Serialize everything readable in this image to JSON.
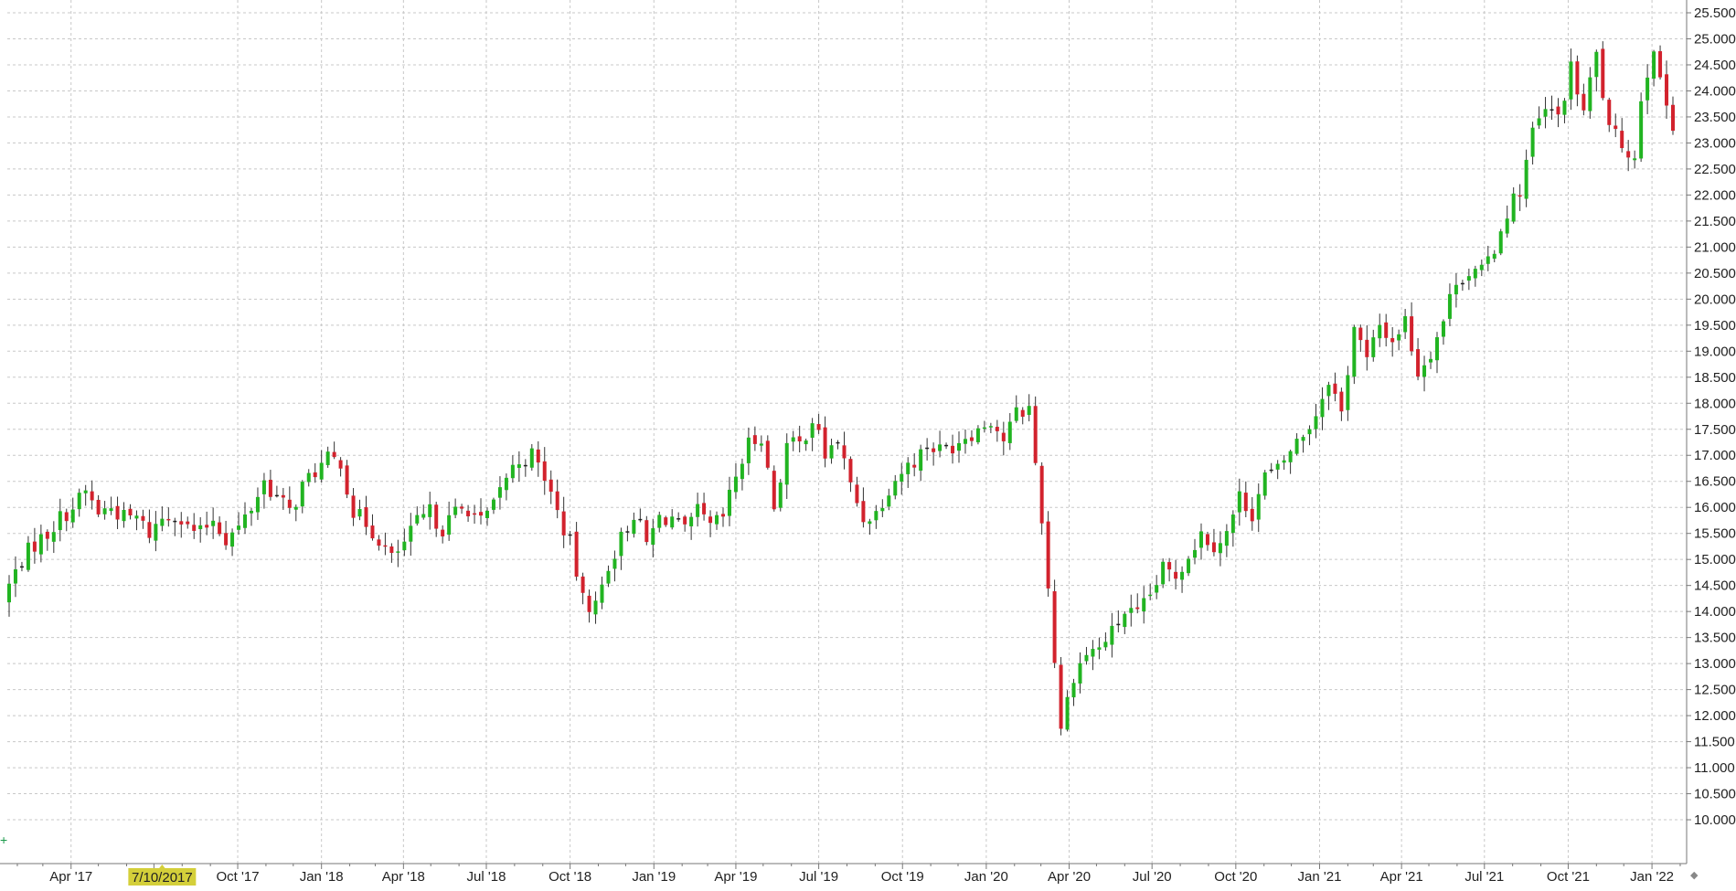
{
  "chart_data": {
    "type": "candlestick",
    "title": "",
    "xlabel": "",
    "ylabel": "",
    "interval": "weekly",
    "ylim": [
      9.8,
      25.7
    ],
    "grid": true,
    "legend": "none",
    "colors": {
      "up": "#21b421",
      "down": "#d2222d",
      "flat": "#222222",
      "cursor": "#d4cf3a",
      "grid": "#c8c8c8",
      "axis": "#777777"
    },
    "x_ticks": [
      "Apr '17",
      "Oct '17",
      "Jan '18",
      "Apr '18",
      "Jul '18",
      "Oct '18",
      "Jan '19",
      "Apr '19",
      "Jul '19",
      "Oct '19",
      "Jan '20",
      "Apr '20",
      "Jul '20",
      "Oct '20",
      "Jan '21",
      "Apr '21",
      "Jul '21",
      "Oct '21",
      "Jan '22"
    ],
    "y_ticks": [
      "10.000",
      "10.500",
      "11.000",
      "11.500",
      "12.000",
      "12.500",
      "13.000",
      "13.500",
      "14.000",
      "14.500",
      "15.000",
      "15.500",
      "16.000",
      "16.500",
      "17.000",
      "17.500",
      "18.000",
      "18.500",
      "19.000",
      "19.500",
      "20.000",
      "20.500",
      "21.000",
      "21.500",
      "22.000",
      "22.500",
      "23.000",
      "23.500",
      "24.000",
      "24.500",
      "25.000",
      "25.500"
    ],
    "cursor_label": "7/10/2017",
    "cursor_date": "2017-07-10",
    "x_start": "2017-01-23",
    "x_end": "2022-01-24",
    "anchors": [
      [
        "2017-01-23",
        14.5
      ],
      [
        "2017-02-06",
        15.0
      ],
      [
        "2017-02-20",
        15.3
      ],
      [
        "2017-03-06",
        15.5
      ],
      [
        "2017-03-20",
        15.8
      ],
      [
        "2017-04-03",
        16.0
      ],
      [
        "2017-04-17",
        16.3
      ],
      [
        "2017-05-01",
        15.9
      ],
      [
        "2017-05-15",
        16.0
      ],
      [
        "2017-05-29",
        15.8
      ],
      [
        "2017-06-12",
        15.8
      ],
      [
        "2017-06-26",
        15.5
      ],
      [
        "2017-07-10",
        15.8
      ],
      [
        "2017-07-24",
        15.9
      ],
      [
        "2017-08-07",
        15.6
      ],
      [
        "2017-08-21",
        15.5
      ],
      [
        "2017-09-04",
        15.8
      ],
      [
        "2017-09-18",
        15.4
      ],
      [
        "2017-10-02",
        15.6
      ],
      [
        "2017-10-16",
        16.0
      ],
      [
        "2017-10-30",
        16.5
      ],
      [
        "2017-11-13",
        16.2
      ],
      [
        "2017-11-27",
        15.9
      ],
      [
        "2017-12-11",
        16.4
      ],
      [
        "2017-12-25",
        16.7
      ],
      [
        "2018-01-08",
        16.9
      ],
      [
        "2018-01-22",
        16.9
      ],
      [
        "2018-02-05",
        15.9
      ],
      [
        "2018-02-19",
        15.7
      ],
      [
        "2018-03-05",
        15.4
      ],
      [
        "2018-03-19",
        15.0
      ],
      [
        "2018-04-02",
        15.3
      ],
      [
        "2018-04-16",
        15.7
      ],
      [
        "2018-04-30",
        15.9
      ],
      [
        "2018-05-14",
        15.6
      ],
      [
        "2018-05-28",
        15.9
      ],
      [
        "2018-06-11",
        16.0
      ],
      [
        "2018-06-25",
        15.7
      ],
      [
        "2018-07-09",
        16.0
      ],
      [
        "2018-07-23",
        16.6
      ],
      [
        "2018-08-06",
        16.9
      ],
      [
        "2018-08-20",
        17.0
      ],
      [
        "2018-09-03",
        16.6
      ],
      [
        "2018-09-17",
        15.9
      ],
      [
        "2018-10-01",
        15.3
      ],
      [
        "2018-10-15",
        14.2
      ],
      [
        "2018-10-29",
        14.1
      ],
      [
        "2018-11-12",
        14.9
      ],
      [
        "2018-11-26",
        15.4
      ],
      [
        "2018-12-10",
        15.9
      ],
      [
        "2018-12-24",
        15.3
      ],
      [
        "2019-01-07",
        15.8
      ],
      [
        "2019-01-21",
        15.8
      ],
      [
        "2019-02-04",
        15.5
      ],
      [
        "2019-02-18",
        15.9
      ],
      [
        "2019-03-04",
        15.6
      ],
      [
        "2019-03-18",
        15.8
      ],
      [
        "2019-04-01",
        16.6
      ],
      [
        "2019-04-15",
        17.2
      ],
      [
        "2019-04-29",
        17.4
      ],
      [
        "2019-05-13",
        16.0
      ],
      [
        "2019-05-27",
        17.2
      ],
      [
        "2019-06-10",
        17.2
      ],
      [
        "2019-06-24",
        17.7
      ],
      [
        "2019-07-08",
        17.0
      ],
      [
        "2019-07-22",
        17.3
      ],
      [
        "2019-08-05",
        16.4
      ],
      [
        "2019-08-19",
        15.8
      ],
      [
        "2019-09-02",
        15.9
      ],
      [
        "2019-09-16",
        16.4
      ],
      [
        "2019-09-30",
        16.7
      ],
      [
        "2019-10-14",
        16.9
      ],
      [
        "2019-10-28",
        17.2
      ],
      [
        "2019-11-11",
        17.1
      ],
      [
        "2019-11-25",
        17.2
      ],
      [
        "2019-12-09",
        17.4
      ],
      [
        "2019-12-23",
        17.5
      ],
      [
        "2020-01-06",
        17.7
      ],
      [
        "2020-01-20",
        17.3
      ],
      [
        "2020-02-03",
        17.8
      ],
      [
        "2020-02-17",
        17.9
      ],
      [
        "2020-03-02",
        15.8
      ],
      [
        "2020-03-16",
        13.1
      ],
      [
        "2020-03-23",
        11.8
      ],
      [
        "2020-04-06",
        12.8
      ],
      [
        "2020-04-20",
        13.2
      ],
      [
        "2020-05-04",
        13.3
      ],
      [
        "2020-05-18",
        13.6
      ],
      [
        "2020-06-01",
        14.0
      ],
      [
        "2020-06-15",
        13.9
      ],
      [
        "2020-06-29",
        14.3
      ],
      [
        "2020-07-13",
        14.8
      ],
      [
        "2020-07-27",
        14.7
      ],
      [
        "2020-08-10",
        15.1
      ],
      [
        "2020-08-24",
        15.5
      ],
      [
        "2020-09-07",
        15.3
      ],
      [
        "2020-09-21",
        15.5
      ],
      [
        "2020-10-05",
        16.2
      ],
      [
        "2020-10-19",
        15.9
      ],
      [
        "2020-11-02",
        16.6
      ],
      [
        "2020-11-16",
        16.7
      ],
      [
        "2020-11-30",
        17.1
      ],
      [
        "2020-12-14",
        17.4
      ],
      [
        "2020-12-28",
        17.8
      ],
      [
        "2021-01-11",
        18.5
      ],
      [
        "2021-01-25",
        17.8
      ],
      [
        "2021-02-08",
        19.5
      ],
      [
        "2021-02-22",
        18.8
      ],
      [
        "2021-03-08",
        19.5
      ],
      [
        "2021-03-22",
        19.2
      ],
      [
        "2021-04-05",
        19.6
      ],
      [
        "2021-04-19",
        18.6
      ],
      [
        "2021-05-03",
        19.0
      ],
      [
        "2021-05-17",
        19.6
      ],
      [
        "2021-05-31",
        20.4
      ],
      [
        "2021-06-14",
        20.5
      ],
      [
        "2021-06-28",
        20.5
      ],
      [
        "2021-07-12",
        21.0
      ],
      [
        "2021-07-26",
        21.7
      ],
      [
        "2021-08-09",
        22.1
      ],
      [
        "2021-08-23",
        23.2
      ],
      [
        "2021-09-06",
        23.6
      ],
      [
        "2021-09-20",
        23.5
      ],
      [
        "2021-10-04",
        24.4
      ],
      [
        "2021-10-18",
        23.6
      ],
      [
        "2021-11-01",
        24.7
      ],
      [
        "2021-11-15",
        23.2
      ],
      [
        "2021-11-29",
        23.0
      ],
      [
        "2021-12-13",
        22.7
      ],
      [
        "2021-12-20",
        23.9
      ],
      [
        "2022-01-03",
        24.9
      ],
      [
        "2022-01-10",
        24.1
      ],
      [
        "2022-01-24",
        23.4
      ]
    ]
  }
}
